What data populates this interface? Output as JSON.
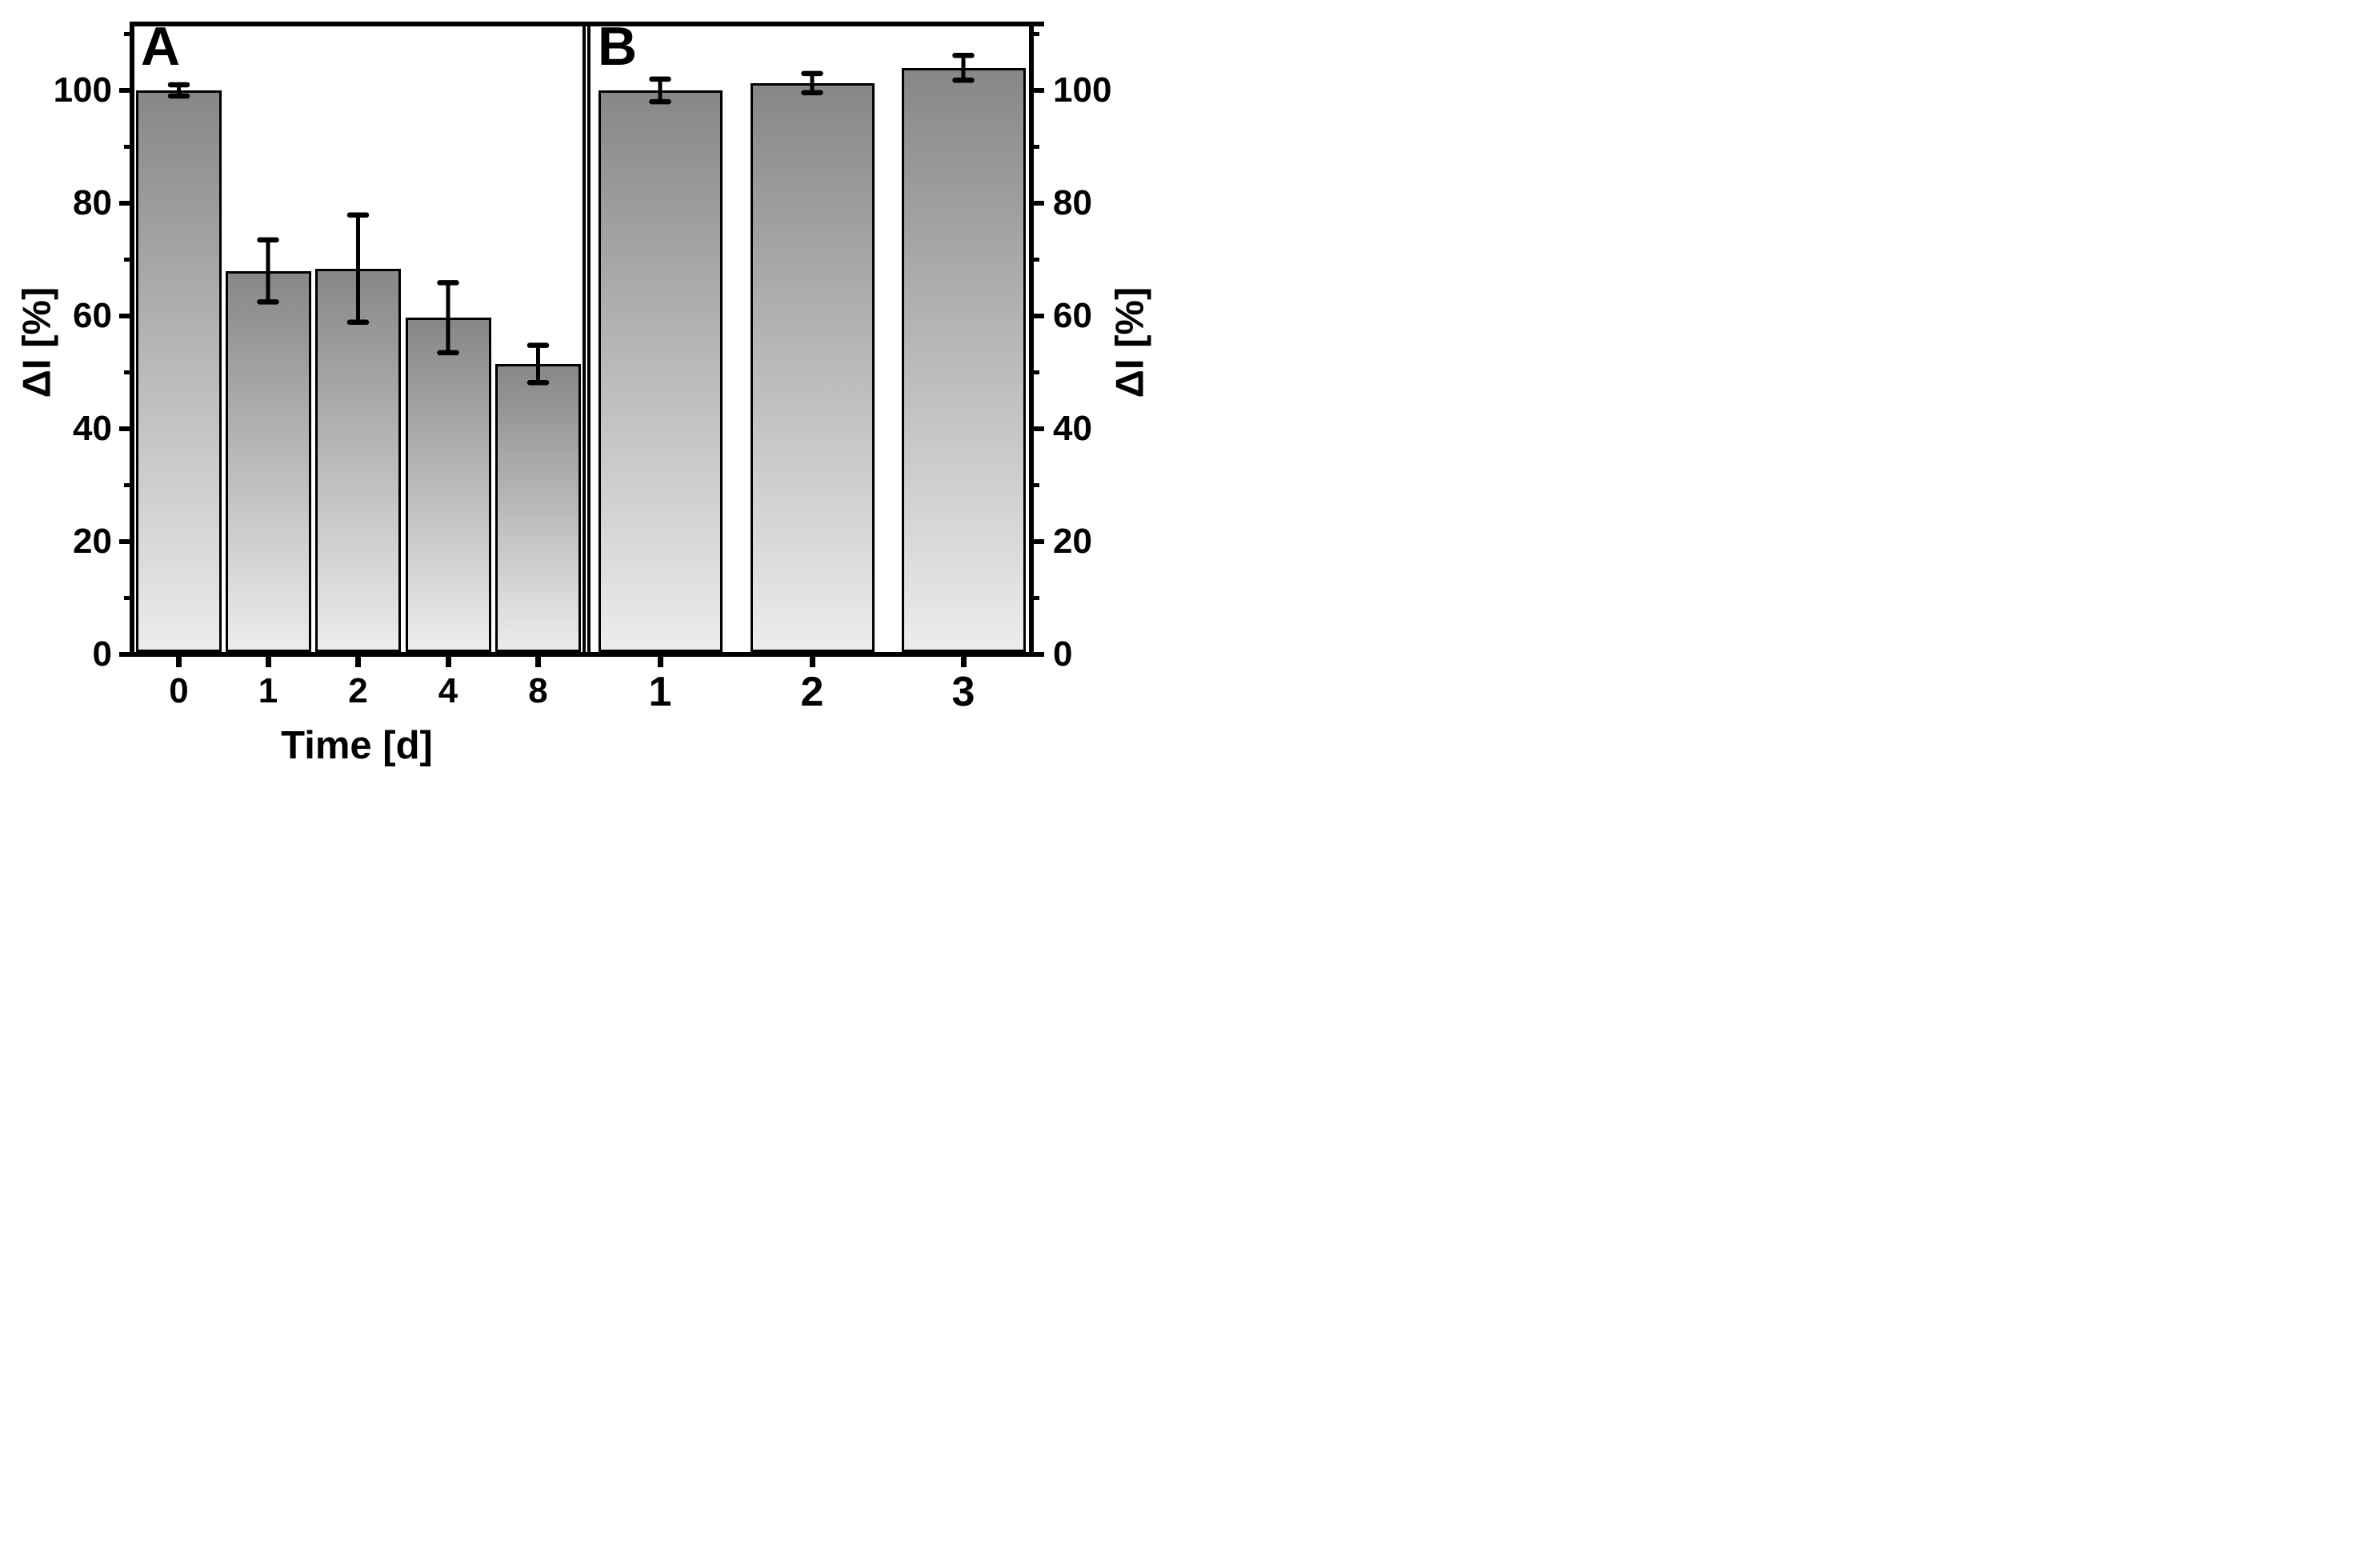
{
  "figure": {
    "background": "#ffffff",
    "axis_color": "#000000",
    "bar_gradient_top": "#878787",
    "bar_gradient_bottom": "#ececec",
    "ylabel_left": "ΔI [%]",
    "ylabel_right": "ΔI [%]",
    "y_axis": {
      "min": 0,
      "max": 111.8,
      "major_ticks": [
        0,
        20,
        40,
        60,
        80,
        100
      ],
      "major_tick_labels": [
        "0",
        "20",
        "40",
        "60",
        "80",
        "100"
      ],
      "minor_ticks": [
        10,
        30,
        50,
        70,
        90,
        110
      ]
    }
  },
  "chart_data": [
    {
      "type": "bar",
      "panel_label": "A",
      "title": "",
      "xlabel": "Time [d]",
      "ylabel": "ΔI [%]",
      "categories": [
        "0",
        "1",
        "2",
        "4",
        "8"
      ],
      "values": [
        100,
        68,
        68.4,
        59.7,
        51.5
      ],
      "errors": [
        1,
        5.5,
        9.5,
        6.2,
        3.3
      ],
      "ylim": [
        0,
        111.8
      ],
      "grid": "off",
      "legend": "none"
    },
    {
      "type": "bar",
      "panel_label": "B",
      "title": "",
      "xlabel": "",
      "ylabel": "ΔI [%]",
      "categories": [
        "1",
        "2",
        "3"
      ],
      "values": [
        100,
        101.3,
        104
      ],
      "errors": [
        2,
        1.7,
        2.2
      ],
      "ylim": [
        0,
        111.8
      ],
      "grid": "off",
      "legend": "none"
    }
  ]
}
